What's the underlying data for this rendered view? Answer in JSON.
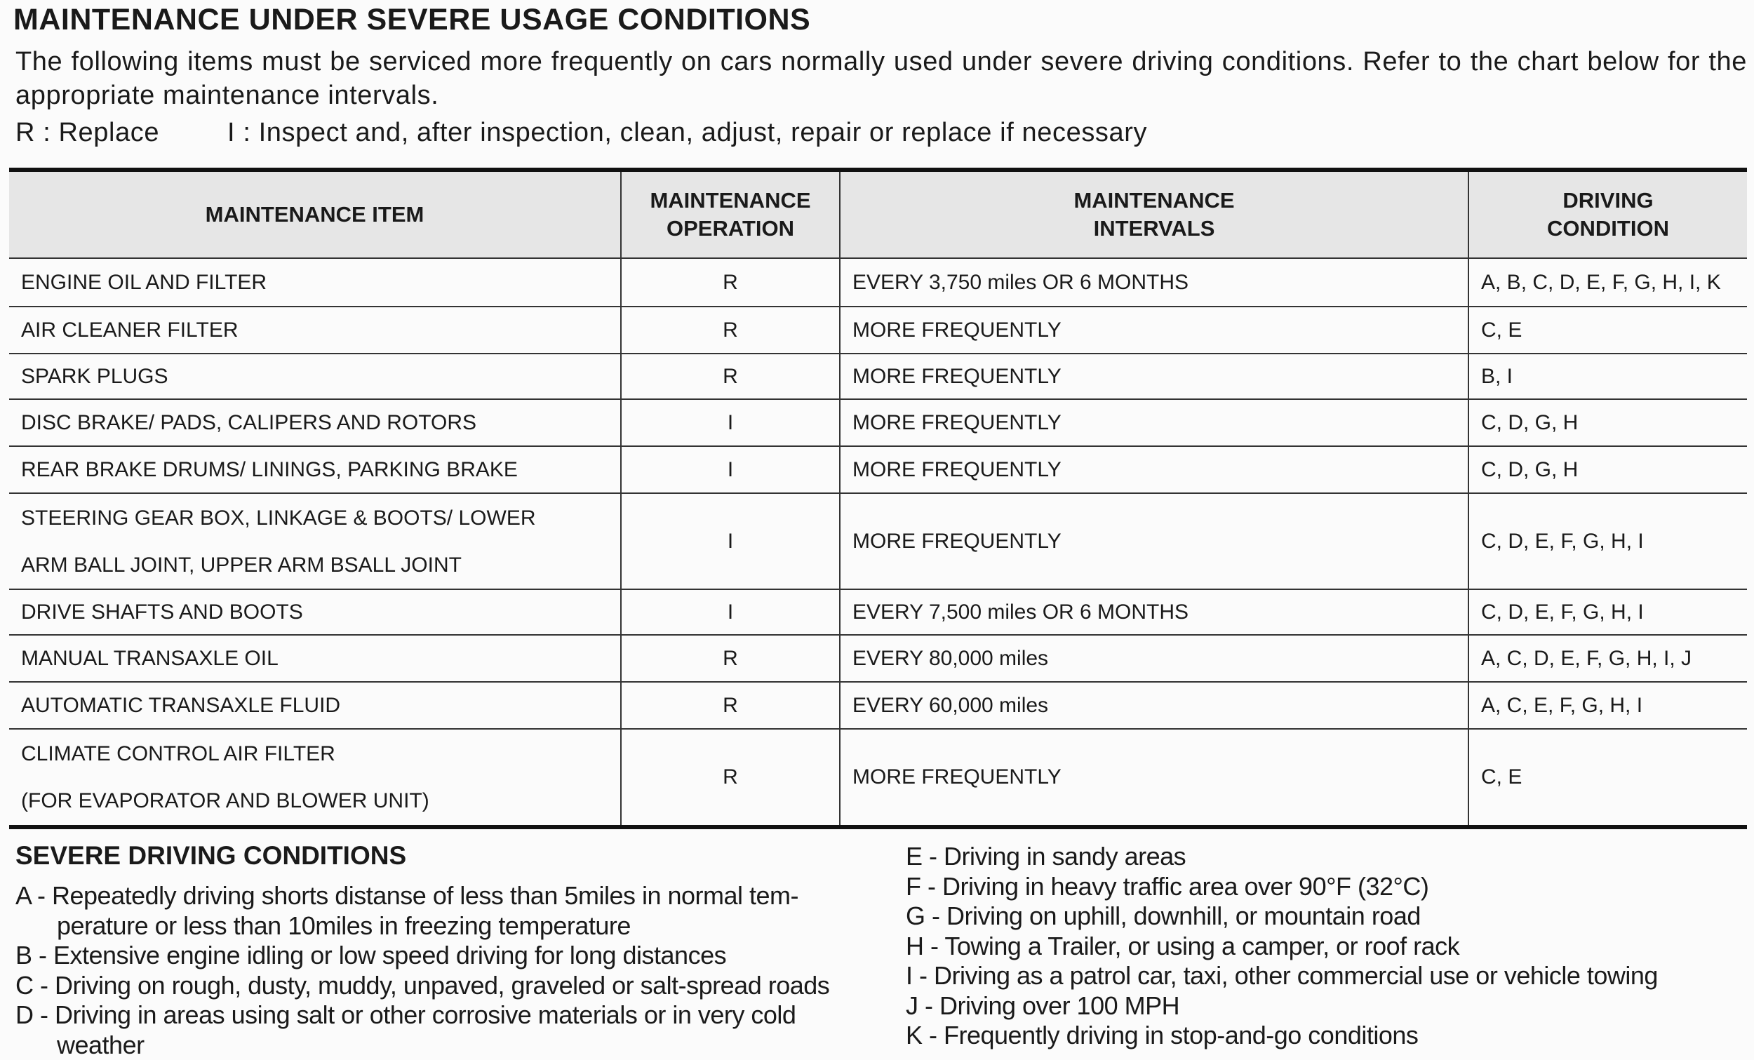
{
  "title": "MAINTENANCE UNDER SEVERE USAGE CONDITIONS",
  "intro": "The following items must be serviced more frequently on cars normally used under severe driving conditions. Refer to the chart below for the appropriate maintenance intervals.",
  "legend": {
    "replace": "R : Replace",
    "inspect": "I : Inspect and, after inspection, clean, adjust, repair or replace if necessary"
  },
  "table": {
    "header": [
      [
        "MAINTENANCE ITEM"
      ],
      [
        "MAINTENANCE",
        "OPERATION"
      ],
      [
        "MAINTENANCE",
        "INTERVALS"
      ],
      [
        "DRIVING",
        "CONDITION"
      ]
    ],
    "rows": [
      [
        [
          "ENGINE OIL AND FILTER"
        ],
        "R",
        "EVERY 3,750 miles  OR 6 MONTHS",
        "A, B, C, D, E, F, G, H, I, K"
      ],
      [
        [
          "AIR CLEANER FILTER"
        ],
        "R",
        "MORE FREQUENTLY",
        "C, E"
      ],
      [
        [
          "SPARK PLUGS"
        ],
        "R",
        "MORE FREQUENTLY",
        "B, I"
      ],
      [
        [
          "DISC BRAKE/ PADS, CALIPERS AND ROTORS"
        ],
        "I",
        "MORE FREQUENTLY",
        "C, D, G, H"
      ],
      [
        [
          "REAR BRAKE DRUMS/ LININGS, PARKING BRAKE"
        ],
        "I",
        "MORE FREQUENTLY",
        "C, D, G, H"
      ],
      [
        [
          "STEERING GEAR BOX, LINKAGE & BOOTS/ LOWER",
          "ARM BALL JOINT, UPPER ARM BSALL JOINT"
        ],
        "I",
        "MORE FREQUENTLY",
        "C, D, E, F, G, H, I"
      ],
      [
        [
          "DRIVE SHAFTS AND BOOTS"
        ],
        "I",
        "EVERY 7,500 miles OR 6 MONTHS",
        "C, D, E, F, G, H, I"
      ],
      [
        [
          "MANUAL TRANSAXLE OIL"
        ],
        "R",
        "EVERY 80,000 miles",
        "A, C, D, E, F, G, H, I, J"
      ],
      [
        [
          "AUTOMATIC TRANSAXLE FLUID"
        ],
        "R",
        "EVERY 60,000 miles",
        "A, C, E, F, G, H, I"
      ],
      [
        [
          "CLIMATE CONTROL AIR FILTER",
          "(FOR EVAPORATOR AND BLOWER UNIT)"
        ],
        "R",
        "MORE FREQUENTLY",
        "C, E"
      ]
    ]
  },
  "conditions": {
    "title": "SEVERE DRIVING CONDITIONS",
    "items": [
      [
        "A - Repeatedly driving shorts distanse of less than 5miles in normal tem-",
        "perature or less than 10miles in freezing temperature"
      ],
      [
        "B - Extensive engine idling or low speed driving for long distances"
      ],
      [
        "C - Driving on rough, dusty, muddy, unpaved, graveled or salt-spread roads"
      ],
      [
        "D - Driving in areas using salt or other corrosive materials or in very cold",
        "weather"
      ],
      [
        "E - Driving in sandy areas"
      ],
      [
        "F - Driving in heavy traffic area over 90°F (32°C)"
      ],
      [
        "G - Driving on uphill, downhill, or mountain road"
      ],
      [
        "H - Towing a Trailer, or using a camper, or roof rack"
      ],
      [
        "I  - Driving as a patrol car, taxi, other commercial use or vehicle towing"
      ],
      [
        "J - Driving over 100 MPH"
      ],
      [
        "K - Frequently driving in stop-and-go conditions"
      ]
    ]
  }
}
